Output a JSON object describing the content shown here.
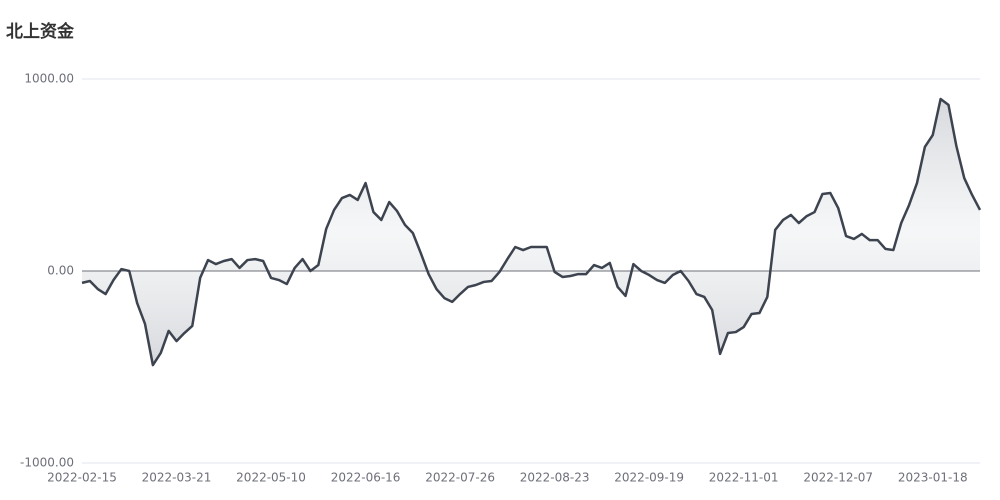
{
  "chart_data": {
    "type": "line",
    "title": "北上资金",
    "categories": [
      "2022-02-15",
      null,
      null,
      null,
      null,
      null,
      null,
      null,
      null,
      null,
      null,
      null,
      "2022-03-21",
      null,
      null,
      null,
      null,
      null,
      null,
      null,
      null,
      null,
      null,
      null,
      "2022-05-10",
      null,
      null,
      null,
      null,
      null,
      null,
      null,
      null,
      null,
      null,
      null,
      "2022-06-16",
      null,
      null,
      null,
      null,
      null,
      null,
      null,
      null,
      null,
      null,
      null,
      "2022-07-26",
      null,
      null,
      null,
      null,
      null,
      null,
      null,
      null,
      null,
      null,
      null,
      "2022-08-23",
      null,
      null,
      null,
      null,
      null,
      null,
      null,
      null,
      null,
      null,
      null,
      "2022-09-19",
      null,
      null,
      null,
      null,
      null,
      null,
      null,
      null,
      null,
      null,
      null,
      "2022-11-01",
      null,
      null,
      null,
      null,
      null,
      null,
      null,
      null,
      null,
      null,
      null,
      "2022-12-07",
      null,
      null,
      null,
      null,
      null,
      null,
      null,
      null,
      null,
      null,
      null,
      "2023-01-18",
      null,
      null,
      null,
      null,
      null,
      null
    ],
    "series": [
      {
        "name": "北上资金",
        "color": "#3d4450",
        "values": [
          -62,
          -52,
          -94,
          -120,
          -47,
          10,
          0,
          -167,
          -276,
          -490,
          -427,
          -312,
          -365,
          -323,
          -286,
          -36,
          57,
          36,
          52,
          62,
          16,
          57,
          62,
          52,
          -36,
          -47,
          -68,
          16,
          62,
          0,
          31,
          219,
          318,
          380,
          396,
          370,
          458,
          307,
          266,
          359,
          312,
          240,
          198,
          94,
          -16,
          -94,
          -141,
          -161,
          -120,
          -83,
          -73,
          -57,
          -52,
          -5,
          62,
          125,
          109,
          125,
          125,
          125,
          -5,
          -31,
          -26,
          -16,
          -16,
          31,
          16,
          42,
          -83,
          -130,
          36,
          0,
          -21,
          -47,
          -62,
          -21,
          0,
          -52,
          -120,
          -135,
          -203,
          -432,
          -323,
          -318,
          -292,
          -224,
          -219,
          -135,
          214,
          266,
          292,
          250,
          286,
          307,
          401,
          406,
          328,
          182,
          167,
          193,
          161,
          161,
          115,
          109,
          250,
          344,
          458,
          646,
          708,
          896,
          865,
          651,
          484,
          396,
          318
        ]
      }
    ],
    "ylim": [
      -1000,
      1000
    ],
    "yticks": [
      {
        "value": -1000,
        "label": "-1000.00"
      },
      {
        "value": 0,
        "label": "0.00"
      },
      {
        "value": 1000,
        "label": "1000.00"
      }
    ],
    "grid": true
  }
}
